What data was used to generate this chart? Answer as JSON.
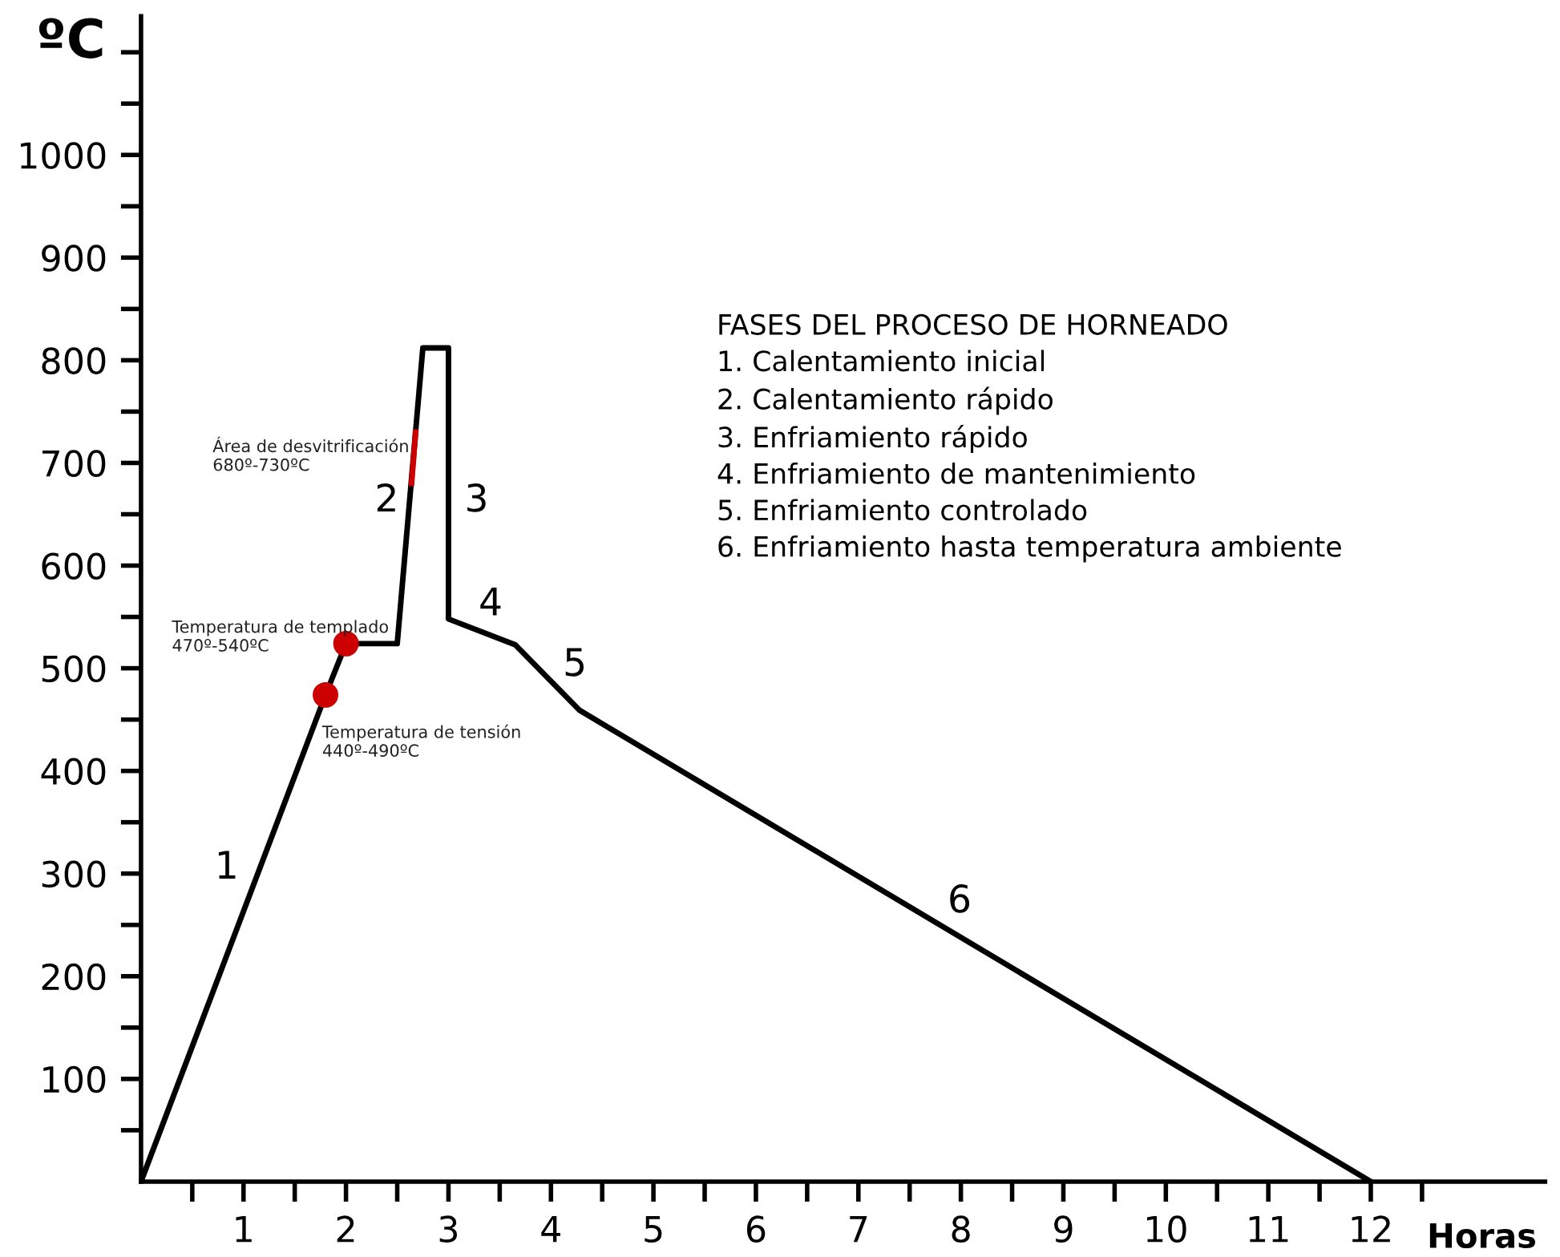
{
  "chart_data": {
    "type": "line",
    "xlabel": "Horas",
    "ylabel": "ºC",
    "series": [
      {
        "color": "#000000",
        "x": [
          0,
          1.8,
          2.0,
          2.5,
          2.75,
          3.0,
          3.0,
          3.65,
          4.28,
          12
        ],
        "values": [
          0,
          474,
          524,
          524,
          812,
          812,
          548,
          523,
          459,
          0
        ]
      },
      {
        "color": "#cc0000",
        "x": [
          2.64,
          2.68
        ],
        "values": [
          680,
          730
        ]
      },
      {
        "type": "scatter",
        "color": "#cc0000",
        "marker": "circle",
        "x": [
          1.8,
          2.0
        ],
        "values": [
          474,
          524
        ]
      }
    ],
    "xlim": [
      0,
      13.7
    ],
    "ylim": [
      0,
      1135
    ],
    "xticks": [
      {
        "value": 0.5,
        "label": null
      },
      1,
      {
        "value": 1.5,
        "label": null
      },
      2,
      {
        "value": 2.5,
        "label": null
      },
      3,
      {
        "value": 3.5,
        "label": null
      },
      4,
      {
        "value": 4.5,
        "label": null
      },
      5,
      {
        "value": 5.5,
        "label": null
      },
      6,
      {
        "value": 6.5,
        "label": null
      },
      7,
      {
        "value": 7.5,
        "label": null
      },
      8,
      {
        "value": 8.5,
        "label": null
      },
      9,
      {
        "value": 9.5,
        "label": null
      },
      10,
      {
        "value": 10.5,
        "label": null
      },
      11,
      {
        "value": 11.5,
        "label": null
      },
      12,
      {
        "value": 12.5,
        "label": null
      }
    ],
    "yticks": [
      {
        "value": 50,
        "label": null
      },
      100,
      {
        "value": 150,
        "label": null
      },
      200,
      {
        "value": 250,
        "label": null
      },
      300,
      {
        "value": 350,
        "label": null
      },
      400,
      {
        "value": 450,
        "label": null
      },
      500,
      {
        "value": 550,
        "label": null
      },
      600,
      {
        "value": 650,
        "label": null
      },
      700,
      {
        "value": 750,
        "label": null
      },
      800,
      {
        "value": 850,
        "label": null
      },
      900,
      {
        "value": 950,
        "label": null
      },
      1000,
      {
        "value": 1050,
        "label": null
      },
      {
        "value": 1100,
        "label": null
      }
    ],
    "grid": false,
    "legend": false,
    "line_style": "solid",
    "annotations": [
      "1",
      "2",
      "3",
      "4",
      "5",
      "6",
      "Área de desvitrificación\n680º-730ºC",
      "Temperatura de templado\n470º-540ºC",
      "Temperatura de tensión\n440º-490ºC",
      "FASES DEL PROCESO DE HORNEADO\n1. Calentamiento inicial\n2. Calentamiento rápido\n3. Enfriamiento rápido\n4. Enfriamiento de mantenimiento\n5. Enfriamiento controlado\n6. Enfriamiento hasta temperatura ambiente"
    ]
  }
}
